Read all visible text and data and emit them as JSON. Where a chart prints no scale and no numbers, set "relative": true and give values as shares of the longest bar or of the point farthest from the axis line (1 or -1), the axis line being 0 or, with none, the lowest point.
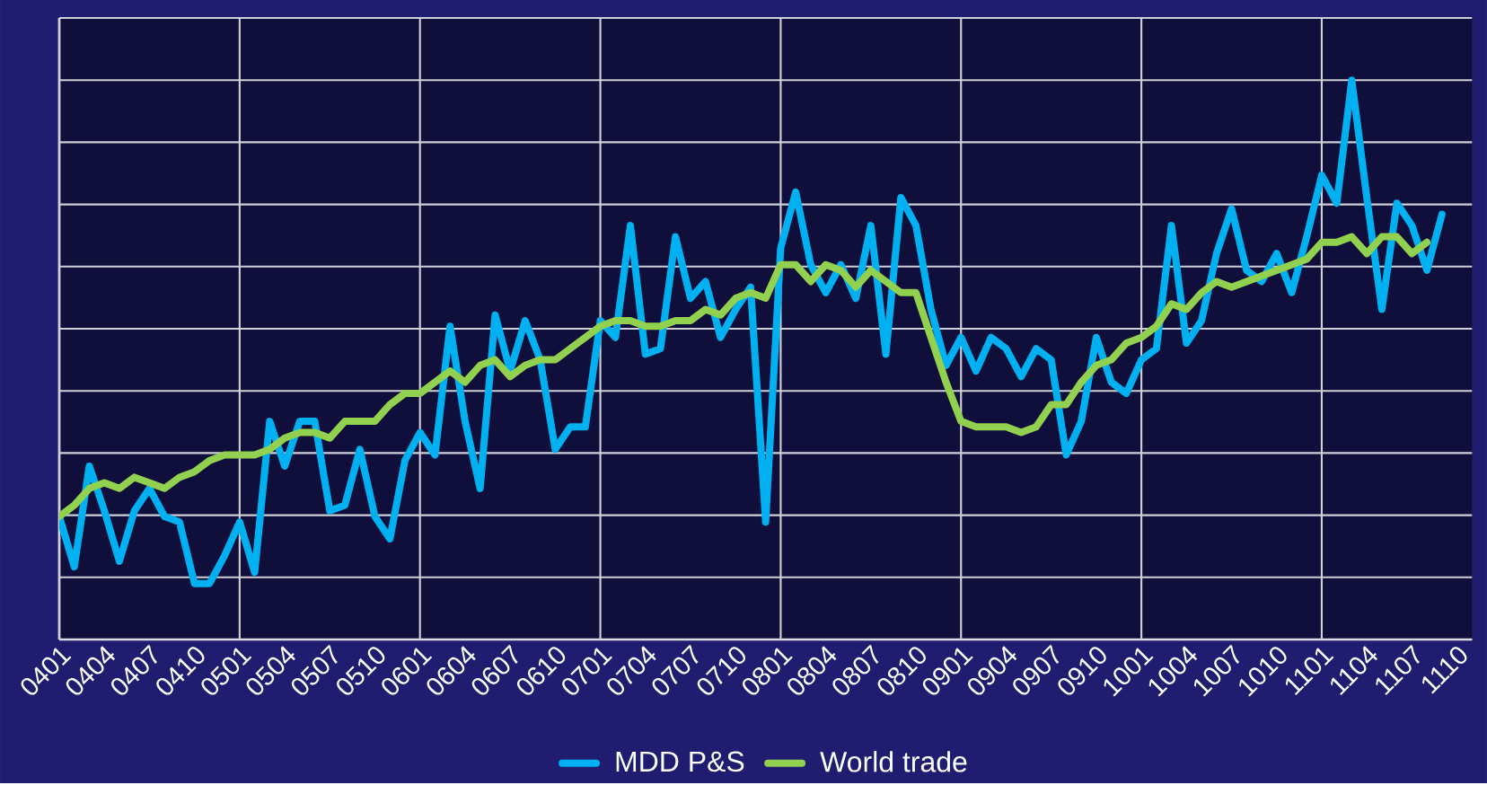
{
  "chart_data": {
    "type": "line",
    "relative": true,
    "grid": true,
    "legend": "bottom",
    "marker": "none",
    "line_style": "solid",
    "categories": [
      "0401",
      null,
      null,
      "0404",
      null,
      null,
      "0407",
      null,
      null,
      "0410",
      null,
      null,
      "0501",
      null,
      null,
      "0504",
      null,
      null,
      "0507",
      null,
      null,
      "0510",
      null,
      null,
      "0601",
      null,
      null,
      "0604",
      null,
      null,
      "0607",
      null,
      null,
      "0610",
      null,
      null,
      "0701",
      null,
      null,
      "0704",
      null,
      null,
      "0707",
      null,
      null,
      "0710",
      null,
      null,
      "0801",
      null,
      null,
      "0804",
      null,
      null,
      "0807",
      null,
      null,
      "0810",
      null,
      null,
      "0901",
      null,
      null,
      "0904",
      null,
      null,
      "0907",
      null,
      null,
      "0910",
      null,
      null,
      "1001",
      null,
      null,
      "1004",
      null,
      null,
      "1007",
      null,
      null,
      "1010",
      null,
      null,
      "1101",
      null,
      null,
      "1104",
      null,
      null,
      "1107",
      null,
      null,
      "1110"
    ],
    "series": [
      {
        "name": "MDD P&S",
        "color": "#00b0f0",
        "values": [
          0.22,
          0.13,
          0.31,
          0.23,
          0.14,
          0.23,
          0.27,
          0.22,
          0.21,
          0.1,
          0.1,
          0.15,
          0.21,
          0.12,
          0.39,
          0.31,
          0.39,
          0.39,
          0.23,
          0.24,
          0.34,
          0.22,
          0.18,
          0.32,
          0.37,
          0.33,
          0.56,
          0.39,
          0.27,
          0.58,
          0.48,
          0.57,
          0.5,
          0.34,
          0.38,
          0.38,
          0.57,
          0.54,
          0.74,
          0.51,
          0.52,
          0.72,
          0.61,
          0.64,
          0.54,
          0.59,
          0.63,
          0.21,
          0.7,
          0.8,
          0.67,
          0.62,
          0.67,
          0.61,
          0.74,
          0.51,
          0.79,
          0.74,
          0.59,
          0.49,
          0.54,
          0.48,
          0.54,
          0.52,
          0.47,
          0.52,
          0.5,
          0.33,
          0.39,
          0.54,
          0.46,
          0.44,
          0.5,
          0.52,
          0.74,
          0.53,
          0.57,
          0.69,
          0.77,
          0.66,
          0.64,
          0.69,
          0.62,
          0.72,
          0.83,
          0.78,
          1,
          0.79,
          0.59,
          0.78,
          0.74,
          0.66,
          0.76,
          null
        ]
      },
      {
        "name": "World trade",
        "color": "#92d050",
        "values": [
          0.22,
          0.24,
          0.27,
          0.28,
          0.27,
          0.29,
          0.28,
          0.27,
          0.29,
          0.3,
          0.32,
          0.33,
          0.33,
          0.33,
          0.34,
          0.36,
          0.37,
          0.37,
          0.36,
          0.39,
          0.39,
          0.39,
          0.42,
          0.44,
          0.44,
          0.46,
          0.48,
          0.46,
          0.49,
          0.5,
          0.47,
          0.49,
          0.5,
          0.5,
          0.52,
          0.54,
          0.56,
          0.57,
          0.57,
          0.56,
          0.56,
          0.57,
          0.57,
          0.59,
          0.58,
          0.61,
          0.62,
          0.61,
          0.67,
          0.67,
          0.64,
          0.67,
          0.66,
          0.63,
          0.66,
          0.64,
          0.62,
          0.62,
          0.54,
          0.46,
          0.39,
          0.38,
          0.38,
          0.38,
          0.37,
          0.38,
          0.42,
          0.42,
          0.46,
          0.49,
          0.5,
          0.53,
          0.54,
          0.56,
          0.6,
          0.59,
          0.62,
          0.64,
          0.63,
          0.64,
          0.65,
          0.66,
          0.67,
          0.68,
          0.71,
          0.71,
          0.72,
          0.69,
          0.72,
          0.72,
          0.69,
          0.71,
          null,
          null
        ]
      }
    ]
  }
}
